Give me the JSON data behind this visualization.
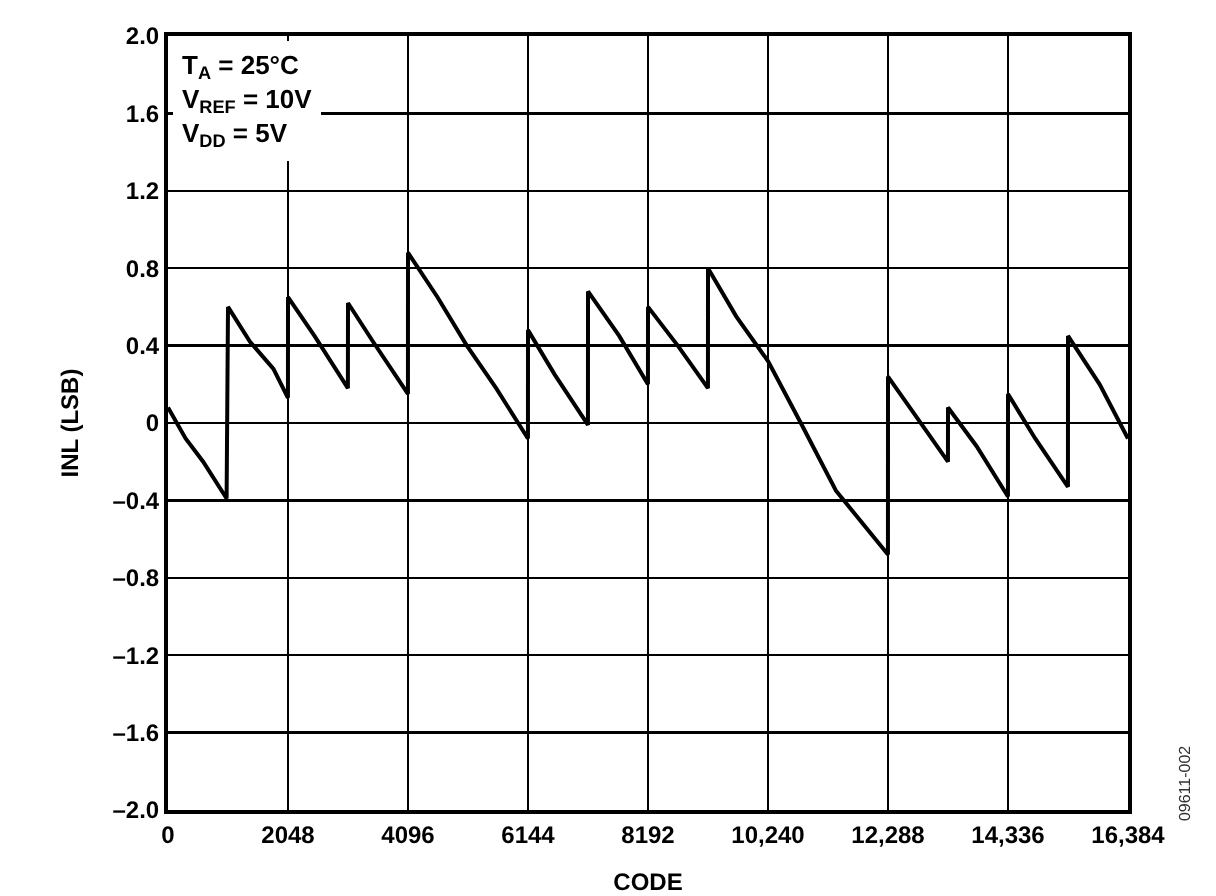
{
  "chart_data": {
    "type": "line",
    "xlabel": "CODE",
    "ylabel": "INL (LSB)",
    "x": [
      0,
      300,
      600,
      1000,
      1024,
      1400,
      1800,
      2047,
      2048,
      2500,
      3070,
      3072,
      3500,
      4095,
      4096,
      4600,
      5100,
      5600,
      6143,
      6144,
      6600,
      7167,
      7168,
      7700,
      8191,
      8192,
      8700,
      9215,
      9216,
      9700,
      10240,
      10800,
      11400,
      12287,
      12288,
      12800,
      13311,
      13312,
      13800,
      14335,
      14336,
      14800,
      15359,
      15360,
      15900,
      16383
    ],
    "series": [
      {
        "color": "#000000",
        "values": [
          0.08,
          -0.08,
          -0.2,
          -0.39,
          0.6,
          0.42,
          0.28,
          0.13,
          0.65,
          0.45,
          0.18,
          0.62,
          0.42,
          0.15,
          0.88,
          0.65,
          0.4,
          0.18,
          -0.08,
          0.48,
          0.25,
          -0.01,
          0.68,
          0.45,
          0.2,
          0.6,
          0.4,
          0.18,
          0.8,
          0.55,
          0.32,
          0.0,
          -0.35,
          -0.68,
          0.24,
          0.02,
          -0.2,
          0.08,
          -0.12,
          -0.38,
          0.15,
          -0.08,
          -0.33,
          0.45,
          0.2,
          -0.08
        ]
      }
    ],
    "xlim": [
      0,
      16384
    ],
    "xticks": [
      0,
      2048,
      4096,
      6144,
      8192,
      {
        "value": 10240,
        "label": "10,240"
      },
      {
        "value": 12288,
        "label": "12,288"
      },
      {
        "value": 14336,
        "label": "14,336"
      },
      {
        "value": 16384,
        "label": "16,384"
      }
    ],
    "ylim": [
      -2,
      2
    ],
    "yticks": [
      {
        "value": -2,
        "label": "–2.0"
      },
      {
        "value": -1.6,
        "label": "–1.6"
      },
      {
        "value": -1.2,
        "label": "–1.2"
      },
      {
        "value": -0.8,
        "label": "–0.8"
      },
      {
        "value": -0.4,
        "label": "–0.4"
      },
      0,
      {
        "value": 0.4,
        "label": "0.4"
      },
      {
        "value": 0.8,
        "label": "0.8"
      },
      {
        "value": 1.2,
        "label": "1.2"
      },
      {
        "value": 1.6,
        "label": "1.6"
      },
      {
        "value": 2,
        "label": "2.0"
      }
    ],
    "grid": true,
    "marker": "none",
    "line_style": "solid",
    "annotations": [
      "T$_{A}$ = 25°C",
      "V$_{REF}$ = 10V",
      "V$_{DD}$ = 5V",
      "09611-002"
    ]
  }
}
